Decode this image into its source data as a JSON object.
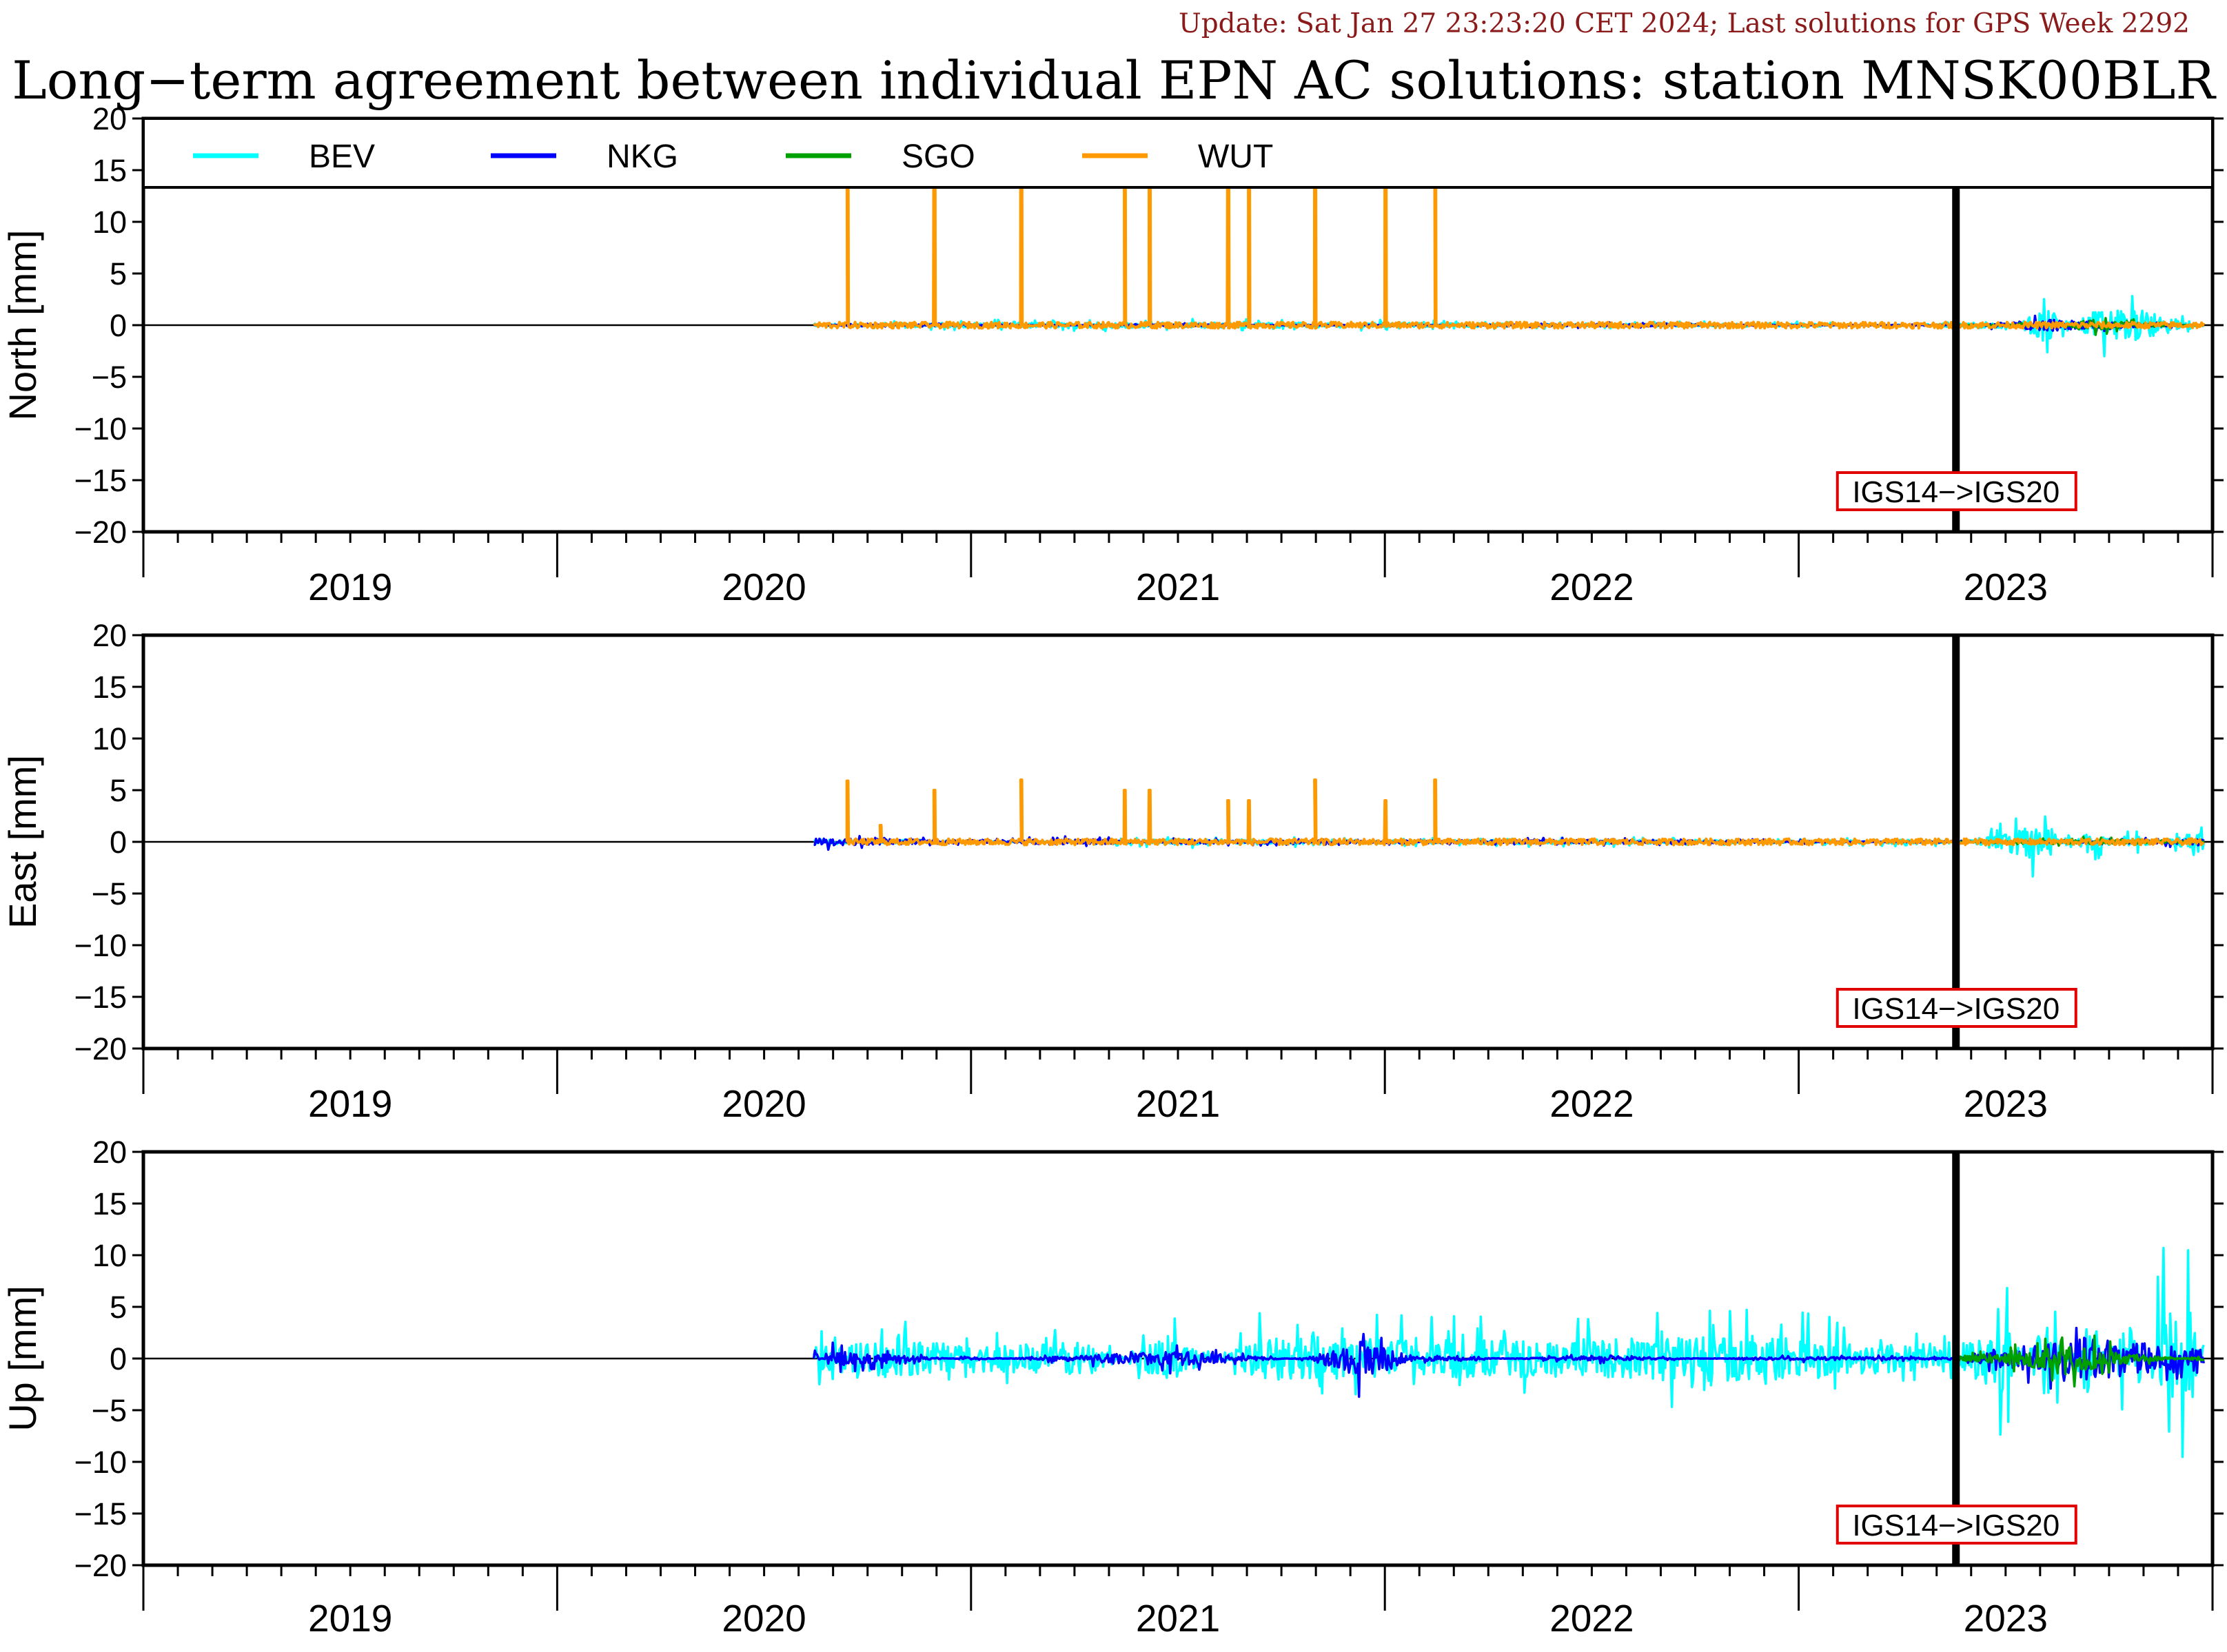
{
  "header": {
    "update_text": "Update: Sat Jan 27 23:23:20 CET 2024; Last solutions for GPS Week 2292",
    "update_color": "#8b1a1a",
    "title": "Long−term agreement between individual EPN AC solutions: station MNSK00BLR"
  },
  "chart_data": {
    "type": "line",
    "ylim": [
      -20,
      20
    ],
    "xlim": [
      2018.5,
      2023.5
    ],
    "yticks": [
      20,
      15,
      10,
      5,
      0,
      -5,
      -10,
      -15,
      -20
    ],
    "xtick_labels": [
      "2019",
      "2020",
      "2021",
      "2022",
      "2023"
    ],
    "xtick_positions": [
      2019,
      2020,
      2021,
      2022,
      2023
    ],
    "legend": {
      "placement": "top",
      "entries": [
        {
          "name": "BEV",
          "color": "#00ffff"
        },
        {
          "name": "NKG",
          "color": "#0000ff"
        },
        {
          "name": "SGO",
          "color": "#00a000"
        },
        {
          "name": "WUT",
          "color": "#ff9900"
        }
      ]
    },
    "reference_change": {
      "x": 2022.88,
      "label": "IGS14−>IGS20"
    },
    "panels": [
      {
        "ylabel": "North [mm]",
        "series": [
          {
            "name": "BEV",
            "x": [
              2020.12,
              2020.5,
              2021.0,
              2021.5,
              2022.0,
              2022.5,
              2022.88,
              2023.0,
              2023.1,
              2023.2,
              2023.3,
              2023.48
            ],
            "y": [
              0.3,
              0.5,
              0.6,
              0.5,
              0.3,
              0.4,
              -0.4,
              -1.0,
              3.8,
              -2.5,
              -3.8,
              0.2
            ]
          },
          {
            "name": "NKG",
            "x": [
              2020.12,
              2020.5,
              2021.0,
              2021.5,
              2022.0,
              2022.5,
              2022.88,
              2023.1,
              2023.48
            ],
            "y": [
              0.1,
              0.2,
              -0.2,
              0.1,
              -0.3,
              0.0,
              0.1,
              -1.2,
              0.0
            ]
          },
          {
            "name": "SGO",
            "x": [
              2022.88,
              2023.1,
              2023.2,
              2023.48
            ],
            "y": [
              0.0,
              0.3,
              -1.0,
              0.1
            ]
          },
          {
            "name": "WUT",
            "x": [
              2020.12,
              2020.2,
              2020.41,
              2020.62,
              2020.87,
              2020.93,
              2021.12,
              2021.17,
              2021.33,
              2021.5,
              2021.62,
              2022.0,
              2022.5,
              2023.0,
              2023.48
            ],
            "y": [
              0.5,
              20,
              20,
              20,
              20,
              20,
              20,
              20,
              20,
              20,
              20,
              0.2,
              0.3,
              0.3,
              0.1
            ]
          }
        ]
      },
      {
        "ylabel": "East [mm]",
        "series": [
          {
            "name": "BEV",
            "x": [
              2020.12,
              2020.5,
              2021.0,
              2021.5,
              2022.0,
              2022.5,
              2022.88,
              2023.1,
              2023.15,
              2023.2,
              2023.3,
              2023.48
            ],
            "y": [
              0.3,
              0.2,
              -0.6,
              -0.4,
              -0.5,
              -0.3,
              -0.5,
              4.3,
              -1.8,
              2.8,
              -1.5,
              2.4
            ]
          },
          {
            "name": "NKG",
            "x": [
              2020.12,
              2020.5,
              2020.8,
              2021.0,
              2021.5,
              2022.0,
              2022.5,
              2022.88,
              2023.48
            ],
            "y": [
              -0.8,
              -0.3,
              -0.6,
              0.4,
              0.3,
              0.4,
              0.2,
              -0.2,
              0.6
            ]
          },
          {
            "name": "SGO",
            "x": [
              2022.88,
              2023.2,
              2023.48
            ],
            "y": [
              0.0,
              0.5,
              0.1
            ]
          },
          {
            "name": "WUT",
            "x": [
              2020.2,
              2020.28,
              2020.41,
              2020.62,
              2020.87,
              2020.93,
              2021.12,
              2021.17,
              2021.33,
              2021.5,
              2021.62,
              2022.0,
              2023.48
            ],
            "y": [
              5.9,
              1.6,
              5.0,
              6.0,
              5.0,
              5.0,
              4.0,
              4.0,
              6.0,
              4.0,
              6.0,
              0.3,
              0.2
            ]
          }
        ]
      },
      {
        "ylabel": "Up [mm]",
        "series": [
          {
            "name": "BEV",
            "x": [
              2020.12,
              2020.3,
              2020.5,
              2020.8,
              2020.97,
              2021.2,
              2021.5,
              2021.8,
              2022.0,
              2022.2,
              2022.5,
              2022.88,
              2023.0,
              2023.1,
              2023.2,
              2023.3,
              2023.38,
              2023.45,
              2023.48
            ],
            "y": [
              2.5,
              3.8,
              3.0,
              3.5,
              -5.2,
              4.5,
              4.2,
              4.0,
              3.8,
              5.0,
              4.5,
              2.0,
              8.0,
              -9.0,
              8.0,
              -8.0,
              10.7,
              10.5,
              -4.5
            ]
          },
          {
            "name": "NKG",
            "x": [
              2020.12,
              2020.16,
              2020.5,
              2021.0,
              2021.3,
              2021.45,
              2021.6,
              2022.0,
              2022.5,
              2022.88,
              2023.2,
              2023.48
            ],
            "y": [
              2.3,
              -1.6,
              0.3,
              -1.5,
              0.2,
              -4.3,
              0.5,
              -0.5,
              0.4,
              0.2,
              4.6,
              1.8
            ]
          },
          {
            "name": "SGO",
            "x": [
              2022.88,
              2023.0,
              2023.2,
              2023.3,
              2023.48
            ],
            "y": [
              -0.5,
              -1.2,
              -3.0,
              -1.0,
              0.5
            ]
          }
        ]
      }
    ]
  }
}
